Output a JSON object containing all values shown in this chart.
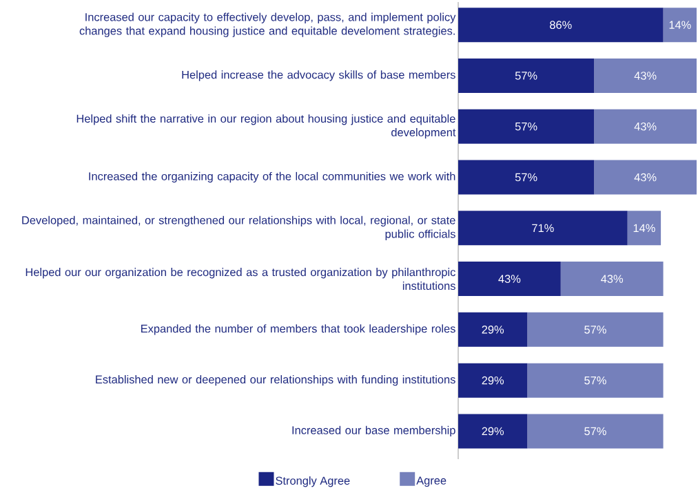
{
  "chart_data": {
    "type": "bar",
    "orientation": "horizontal",
    "stacked": true,
    "legend": "bottom",
    "categories": [
      "Increased our capacity to effectively develop, pass, and implement policy changes that expand housing justice and equitable develoment strategies.",
      "Helped increase the advocacy skills of base members",
      "Helped shift the narrative in our region about housing justice and equitable development",
      "Increased the organizing capacity of the local communities we work with",
      "Developed, maintained, or strengthened our relationships with local, regional, or state public officials",
      "Helped our our organization be recognized as a trusted organization by philanthropic institutions",
      "Expanded the number of members that took leadershipe roles",
      "Established new or deepened our relationships with funding institutions",
      "Increased our base membership"
    ],
    "series": [
      {
        "name": "Strongly Agree",
        "color": "#1b2584",
        "values": [
          86,
          57,
          57,
          57,
          71,
          43,
          29,
          29,
          29
        ],
        "value_labels": [
          "86%",
          "57%",
          "57%",
          "57%",
          "71%",
          "43%",
          "29%",
          "29%",
          "29%"
        ]
      },
      {
        "name": "Agree",
        "color": "#7580bb",
        "values": [
          14,
          43,
          43,
          43,
          14,
          43,
          57,
          57,
          57
        ],
        "value_labels": [
          "14%",
          "43%",
          "43%",
          "43%",
          "14%",
          "43%",
          "57%",
          "57%",
          "57%"
        ]
      }
    ]
  }
}
